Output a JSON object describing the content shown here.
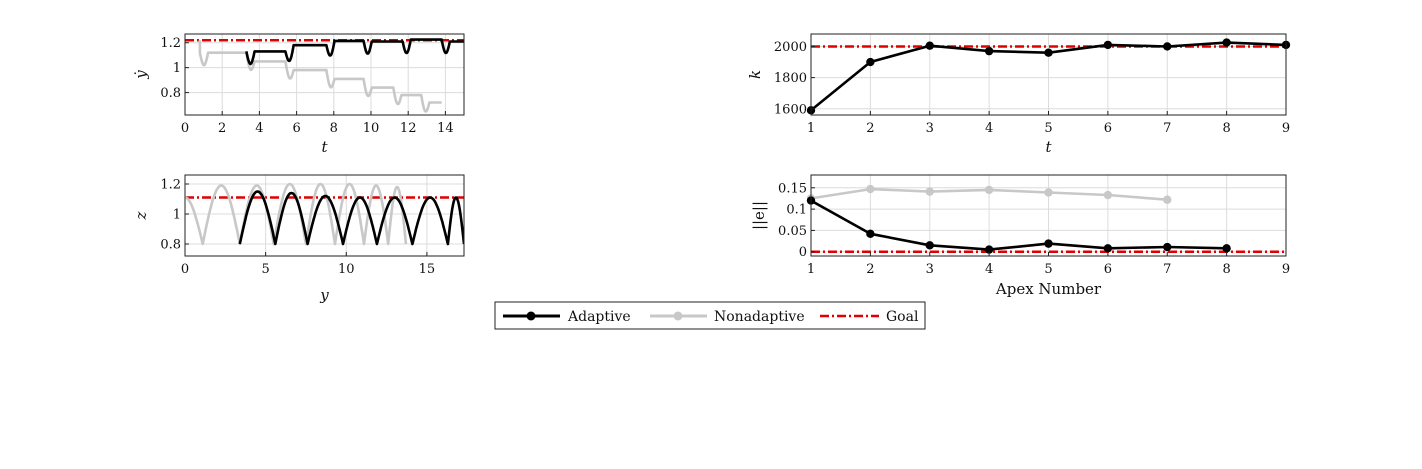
{
  "colors": {
    "adaptive": "#000000",
    "nonadaptive": "#c8c8c8",
    "goal": "#e00000",
    "grid": "#dcdcdc",
    "axis": "#222222"
  },
  "legend": {
    "items": [
      {
        "key": "adaptive",
        "label": "Adaptive",
        "style": "solid-marker"
      },
      {
        "key": "nonadaptive",
        "label": "Nonadaptive",
        "style": "solid-marker"
      },
      {
        "key": "goal",
        "label": "Goal",
        "style": "dashdot"
      }
    ]
  },
  "chart_data": [
    {
      "id": "ydot-vs-t",
      "type": "line",
      "xlabel": "t",
      "ylabel": "ẏ",
      "xlim": [
        0,
        15
      ],
      "ylim": [
        0.62,
        1.27
      ],
      "xticks": [
        0,
        2,
        4,
        6,
        8,
        10,
        12,
        14
      ],
      "yticks": [
        0.8,
        1.0,
        1.2
      ],
      "ytick_labels": [
        "0.8",
        "1",
        "1.2"
      ],
      "grid": true,
      "goal": 1.22,
      "series": [
        {
          "key": "adaptive",
          "segments": [
            {
              "x0": 3.3,
              "x1": 5.4,
              "level": 1.13
            },
            {
              "x0": 5.4,
              "x1": 7.6,
              "level": 1.18
            },
            {
              "x0": 7.6,
              "x1": 9.6,
              "level": 1.215
            },
            {
              "x0": 9.6,
              "x1": 11.7,
              "level": 1.21
            },
            {
              "x0": 11.7,
              "x1": 13.8,
              "level": 1.225
            },
            {
              "x0": 13.8,
              "x1": 15.0,
              "level": 1.21
            }
          ]
        },
        {
          "key": "nonadaptive",
          "segments": [
            {
              "x0": 0.8,
              "x1": 3.3,
              "level": 1.12
            },
            {
              "x0": 3.3,
              "x1": 5.4,
              "level": 1.05
            },
            {
              "x0": 5.4,
              "x1": 7.6,
              "level": 0.98
            },
            {
              "x0": 7.6,
              "x1": 9.6,
              "level": 0.91
            },
            {
              "x0": 9.6,
              "x1": 11.2,
              "level": 0.84
            },
            {
              "x0": 11.2,
              "x1": 12.7,
              "level": 0.78
            },
            {
              "x0": 12.7,
              "x1": 13.8,
              "level": 0.72
            }
          ]
        }
      ]
    },
    {
      "id": "z-vs-y",
      "type": "line",
      "xlabel": "y",
      "ylabel": "z",
      "xlim": [
        0,
        17.3
      ],
      "ylim": [
        0.72,
        1.26
      ],
      "xticks": [
        0,
        5,
        10,
        15
      ],
      "yticks": [
        0.8,
        1.0,
        1.2
      ],
      "ytick_labels": [
        "0.8",
        "1",
        "1.2"
      ],
      "grid": true,
      "goal": 1.11,
      "series": [
        {
          "key": "adaptive",
          "hops": [
            {
              "y0": 3.4,
              "y1": 5.6,
              "peak": 1.15
            },
            {
              "y0": 5.6,
              "y1": 7.6,
              "peak": 1.14
            },
            {
              "y0": 7.6,
              "y1": 9.8,
              "peak": 1.12
            },
            {
              "y0": 9.8,
              "y1": 11.9,
              "peak": 1.11
            },
            {
              "y0": 11.9,
              "y1": 14.1,
              "peak": 1.11
            },
            {
              "y0": 14.1,
              "y1": 16.3,
              "peak": 1.11
            },
            {
              "y0": 16.3,
              "y1": 17.3,
              "peak": 1.11
            }
          ]
        },
        {
          "key": "nonadaptive",
          "start": 1.11,
          "hops": [
            {
              "y0": 1.1,
              "y1": 3.4,
              "peak": 1.19
            },
            {
              "y0": 3.4,
              "y1": 5.5,
              "peak": 1.19
            },
            {
              "y0": 5.5,
              "y1": 7.5,
              "peak": 1.2
            },
            {
              "y0": 7.5,
              "y1": 9.3,
              "peak": 1.2
            },
            {
              "y0": 9.3,
              "y1": 11.1,
              "peak": 1.2
            },
            {
              "y0": 11.1,
              "y1": 12.6,
              "peak": 1.19
            },
            {
              "y0": 12.6,
              "y1": 13.7,
              "peak": 1.18
            }
          ]
        }
      ]
    },
    {
      "id": "k-vs-apex",
      "type": "line",
      "xlabel": "t",
      "ylabel": "k",
      "xlim": [
        1,
        9
      ],
      "ylim": [
        1560,
        2080
      ],
      "xticks": [
        1,
        2,
        3,
        4,
        5,
        6,
        7,
        8,
        9
      ],
      "yticks": [
        1600,
        1800,
        2000
      ],
      "ytick_labels": [
        "1600",
        "1800",
        "2000"
      ],
      "grid": true,
      "goal": 2000,
      "series": [
        {
          "key": "adaptive",
          "x": [
            1,
            2,
            3,
            4,
            5,
            6,
            7,
            8,
            9
          ],
          "y": [
            1590,
            1900,
            2005,
            1970,
            1960,
            2010,
            2000,
            2025,
            2010
          ]
        }
      ]
    },
    {
      "id": "error-vs-apex",
      "type": "line",
      "xlabel": "Apex Number",
      "ylabel": "||e||",
      "xlim": [
        1,
        9
      ],
      "ylim": [
        -0.01,
        0.18
      ],
      "xticks": [
        1,
        2,
        3,
        4,
        5,
        6,
        7,
        8,
        9
      ],
      "yticks": [
        0,
        0.05,
        0.1,
        0.15
      ],
      "ytick_labels": [
        "0",
        "0.05",
        "0.1",
        "0.15"
      ],
      "grid": true,
      "goal": 0,
      "series": [
        {
          "key": "adaptive",
          "x": [
            1,
            2,
            3,
            4,
            5,
            6,
            7,
            8
          ],
          "y": [
            0.12,
            0.042,
            0.015,
            0.005,
            0.019,
            0.008,
            0.011,
            0.008
          ]
        },
        {
          "key": "nonadaptive",
          "x": [
            1,
            2,
            3,
            4,
            5,
            6,
            7
          ],
          "y": [
            0.125,
            0.147,
            0.141,
            0.145,
            0.139,
            0.133,
            0.122
          ]
        }
      ]
    }
  ]
}
